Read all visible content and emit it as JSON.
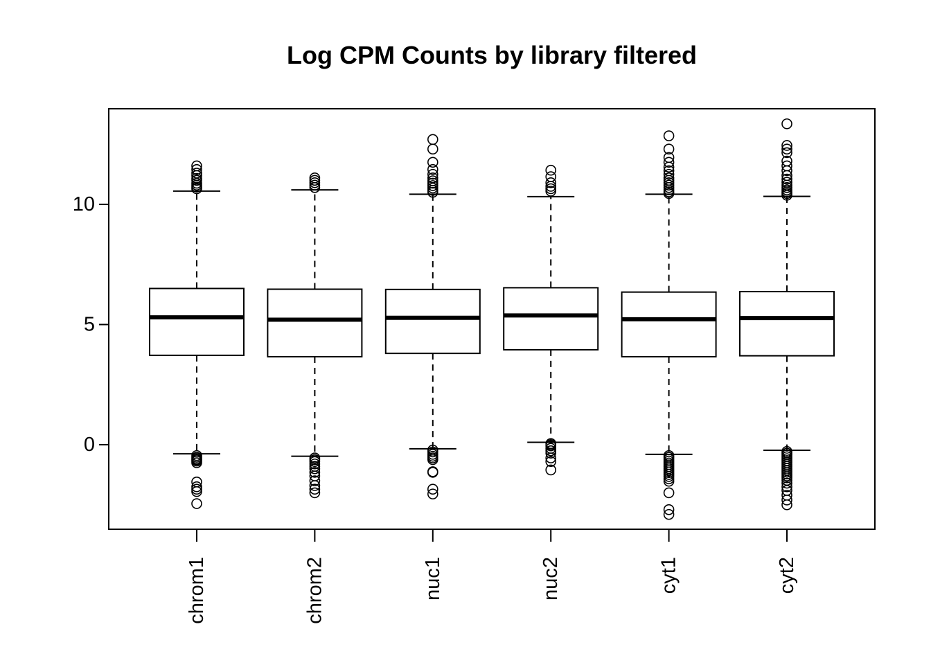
{
  "chart_data": {
    "type": "boxplot",
    "title": "Log CPM Counts by library filtered",
    "xlabel": "",
    "ylabel": "",
    "ylim": [
      -3.5,
      14
    ],
    "yticks": [
      0,
      5,
      10
    ],
    "grid": false,
    "categories": [
      "chrom1",
      "chrom2",
      "nuc1",
      "nuc2",
      "cyt1",
      "cyt2"
    ],
    "boxes": [
      {
        "name": "chrom1",
        "lower_whisker": -0.38,
        "q1": 3.72,
        "median": 5.3,
        "q3": 6.5,
        "upper_whisker": 10.55,
        "outliers": [
          -0.45,
          -0.52,
          -0.58,
          -0.63,
          -0.68,
          -0.75,
          -1.55,
          -1.75,
          -1.85,
          -1.95,
          -2.45,
          10.65,
          10.72,
          10.8,
          10.88,
          11.0,
          11.08,
          11.2,
          11.3,
          11.45,
          11.6
        ]
      },
      {
        "name": "chrom2",
        "lower_whisker": -0.48,
        "q1": 3.66,
        "median": 5.2,
        "q3": 6.47,
        "upper_whisker": 10.6,
        "outliers": [
          -0.55,
          -0.62,
          -0.7,
          -0.8,
          -0.9,
          -1.0,
          -1.15,
          -1.3,
          -1.5,
          -1.7,
          -1.85,
          -2.0,
          10.7,
          10.8,
          10.9,
          11.0,
          11.1
        ]
      },
      {
        "name": "nuc1",
        "lower_whisker": -0.17,
        "q1": 3.8,
        "median": 5.28,
        "q3": 6.46,
        "upper_whisker": 10.42,
        "outliers": [
          -0.22,
          -0.3,
          -0.4,
          -0.48,
          -0.55,
          -0.62,
          -1.12,
          -1.15,
          -1.85,
          -2.05,
          10.5,
          10.58,
          10.68,
          10.78,
          10.88,
          10.98,
          11.1,
          11.25,
          11.45,
          11.75,
          12.3,
          12.7
        ]
      },
      {
        "name": "nuc2",
        "lower_whisker": 0.1,
        "q1": 3.95,
        "median": 5.38,
        "q3": 6.53,
        "upper_whisker": 10.32,
        "outliers": [
          0.05,
          0.0,
          -0.05,
          -0.15,
          -0.25,
          -0.35,
          -0.55,
          -0.7,
          -1.05,
          10.55,
          10.65,
          10.75,
          10.9,
          11.15,
          11.42
        ]
      },
      {
        "name": "cyt1",
        "lower_whisker": -0.4,
        "q1": 3.66,
        "median": 5.22,
        "q3": 6.35,
        "upper_whisker": 10.42,
        "outliers": [
          -0.45,
          -0.52,
          -0.6,
          -0.68,
          -0.76,
          -0.84,
          -0.92,
          -1.0,
          -1.08,
          -1.16,
          -1.24,
          -1.32,
          -1.42,
          -1.52,
          -2.0,
          -2.7,
          -2.9,
          10.45,
          10.52,
          10.6,
          10.7,
          10.8,
          10.9,
          11.0,
          11.1,
          11.25,
          11.4,
          11.55,
          11.75,
          11.95,
          12.3,
          12.85
        ]
      },
      {
        "name": "cyt2",
        "lower_whisker": -0.23,
        "q1": 3.7,
        "median": 5.27,
        "q3": 6.37,
        "upper_whisker": 10.33,
        "outliers": [
          -0.28,
          -0.35,
          -0.42,
          -0.5,
          -0.58,
          -0.66,
          -0.74,
          -0.82,
          -0.9,
          -0.98,
          -1.06,
          -1.14,
          -1.22,
          -1.3,
          -1.38,
          -1.48,
          -1.6,
          -1.75,
          -1.9,
          -2.1,
          -2.3,
          -2.5,
          10.38,
          10.45,
          10.52,
          10.6,
          10.7,
          10.8,
          10.92,
          11.05,
          11.2,
          11.4,
          11.6,
          11.8,
          12.15,
          12.3,
          12.45,
          13.35
        ]
      }
    ]
  }
}
